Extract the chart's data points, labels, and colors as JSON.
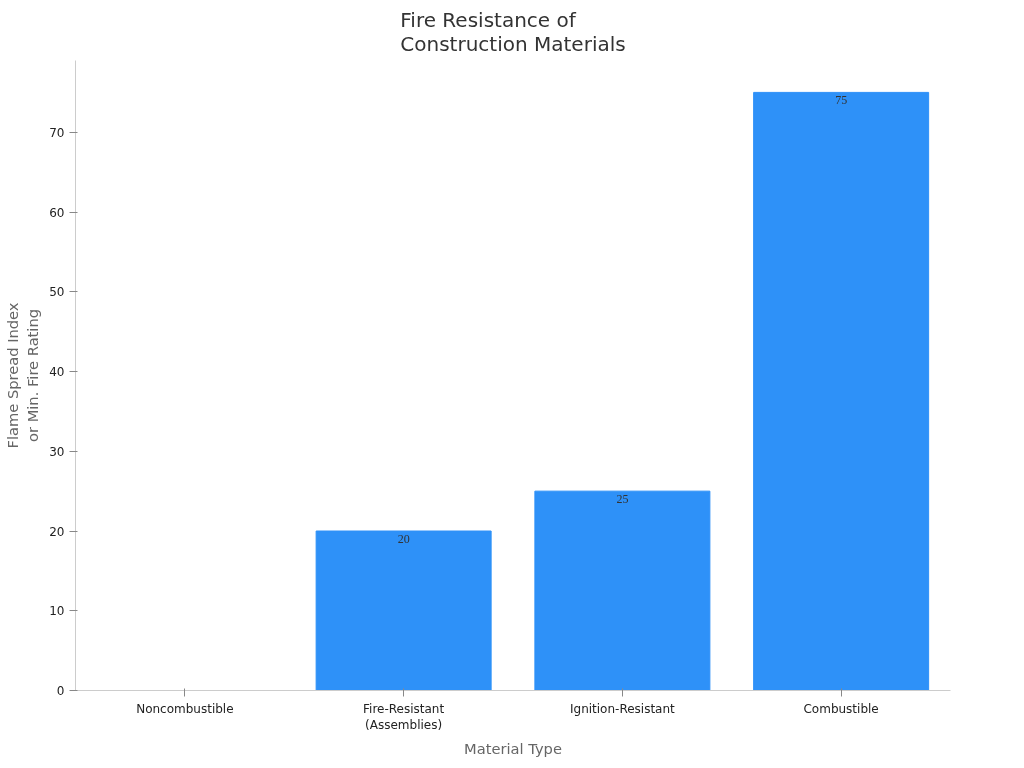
{
  "chart_data": {
    "type": "bar",
    "title": "Fire Resistance of\nConstruction Materials",
    "xlabel": "Material Type",
    "ylabel": "Flame Spread Index\nor Min. Fire Rating",
    "categories": [
      "Noncombustible",
      "Fire-Resistant\n(Assemblies)",
      "Ignition-Resistant",
      "Combustible"
    ],
    "values": [
      0,
      20,
      25,
      75
    ],
    "value_labels": [
      null,
      "20",
      "25",
      "75"
    ],
    "color": "#2e91f8",
    "ylim": [
      0,
      79
    ],
    "yticks": [
      0,
      10,
      20,
      30,
      40,
      50,
      60,
      70
    ],
    "grid": false
  }
}
